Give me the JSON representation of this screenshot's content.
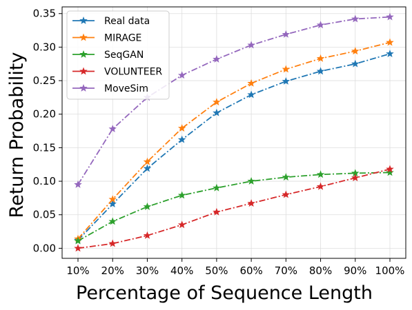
{
  "chart_data": {
    "type": "line",
    "categories": [
      "10%",
      "20%",
      "30%",
      "40%",
      "50%",
      "60%",
      "70%",
      "80%",
      "90%",
      "100%"
    ],
    "xlabel": "Percentage of Sequence Length",
    "ylabel": "Return Probability",
    "ylim": [
      -0.015,
      0.36
    ],
    "yticks": [
      "0.00",
      "0.05",
      "0.10",
      "0.15",
      "0.20",
      "0.25",
      "0.30",
      "0.35"
    ],
    "ytick_values": [
      0.0,
      0.05,
      0.1,
      0.15,
      0.2,
      0.25,
      0.3,
      0.35
    ],
    "grid": true,
    "legend_position": "top-left",
    "series": [
      {
        "name": "Real data",
        "color": "#1f77b4",
        "linestyle": "dashdot",
        "marker": "star",
        "values": [
          0.012,
          0.066,
          0.119,
          0.162,
          0.202,
          0.229,
          0.249,
          0.264,
          0.275,
          0.29
        ]
      },
      {
        "name": "MIRAGE",
        "color": "#ff7f0e",
        "linestyle": "dashdot",
        "marker": "star",
        "values": [
          0.014,
          0.073,
          0.129,
          0.179,
          0.218,
          0.246,
          0.267,
          0.283,
          0.294,
          0.307
        ]
      },
      {
        "name": "SeqGAN",
        "color": "#2ca02c",
        "linestyle": "dashdot",
        "marker": "star",
        "values": [
          0.011,
          0.04,
          0.062,
          0.079,
          0.09,
          0.1,
          0.106,
          0.11,
          0.112,
          0.113
        ]
      },
      {
        "name": "VOLUNTEER",
        "color": "#d62728",
        "linestyle": "dashdot",
        "marker": "star",
        "values": [
          0.0,
          0.007,
          0.019,
          0.035,
          0.054,
          0.067,
          0.08,
          0.092,
          0.105,
          0.118
        ]
      },
      {
        "name": "MoveSim",
        "color": "#9467bd",
        "linestyle": "dashdot",
        "marker": "star",
        "values": [
          0.095,
          0.178,
          0.225,
          0.258,
          0.282,
          0.303,
          0.319,
          0.333,
          0.342,
          0.345
        ]
      }
    ]
  }
}
